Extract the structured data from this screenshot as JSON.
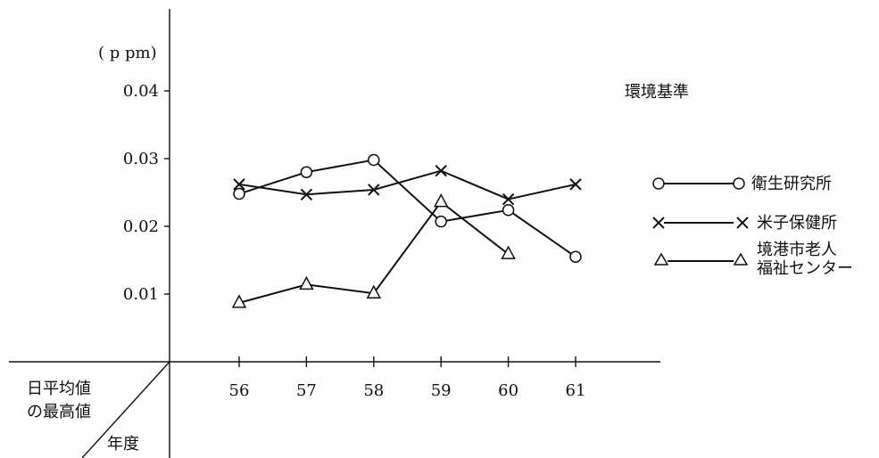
{
  "chart_data": {
    "type": "line",
    "y_unit_label": "( p pm)",
    "categories": [
      "56",
      "57",
      "58",
      "59",
      "60",
      "61"
    ],
    "y_ticks": [
      "0.01",
      "0.02",
      "0.03",
      "0.04"
    ],
    "ylim": [
      0,
      0.042
    ],
    "corner_label_top": [
      "日平均値",
      "の最高値"
    ],
    "corner_label_bottom": "年度",
    "standard_label": "環境基準",
    "legend_position": "right",
    "series": [
      {
        "name": "衛生研究所",
        "marker": "circle",
        "values": [
          0.0248,
          0.028,
          0.0298,
          0.0207,
          0.0224,
          0.0155
        ]
      },
      {
        "name": "米子保健所",
        "marker": "cross",
        "values": [
          0.0262,
          0.0247,
          0.0254,
          0.0282,
          0.024,
          0.0262
        ]
      },
      {
        "name_lines": [
          "境港市老人",
          "福祉センター"
        ],
        "marker": "triangle",
        "values": [
          0.0087,
          0.0114,
          0.0101,
          0.0236,
          0.0159,
          null
        ]
      }
    ]
  }
}
